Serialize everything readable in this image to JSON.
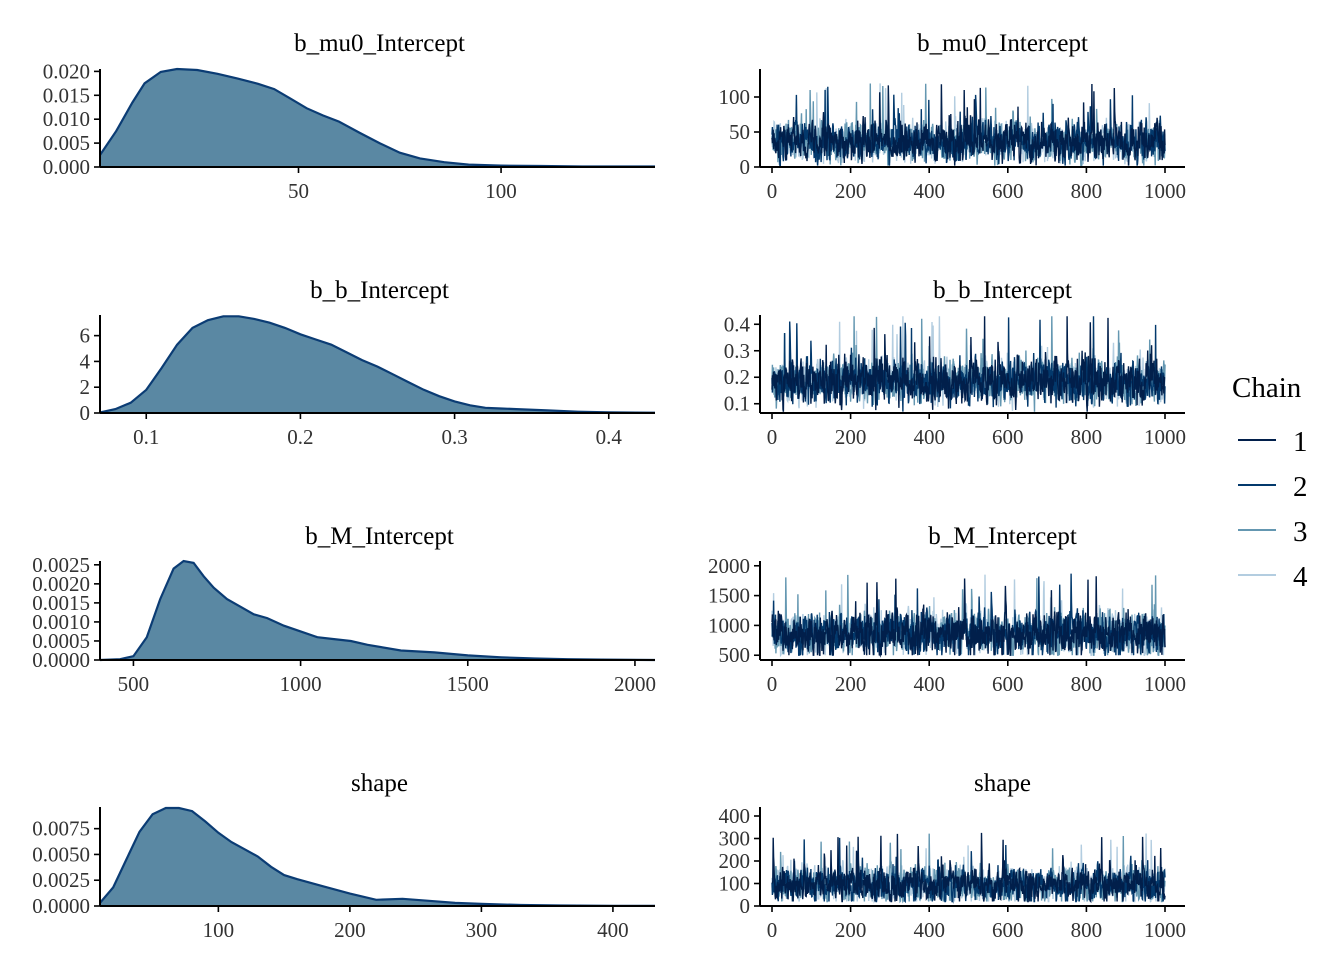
{
  "legend": {
    "title": "Chain",
    "items": [
      {
        "label": "1",
        "color": "#011f4b"
      },
      {
        "label": "2",
        "color": "#03396c"
      },
      {
        "label": "3",
        "color": "#6497b1"
      },
      {
        "label": "4",
        "color": "#b3cde0"
      }
    ]
  },
  "colors": {
    "density_fill": "#5a88a3",
    "density_line": "#0b3c74",
    "axis": "#000000"
  },
  "chart_data": [
    {
      "type": "area",
      "kind": "density",
      "title": "b_mu0_Intercept",
      "xlim": [
        1,
        138
      ],
      "ylim": [
        0,
        0.0205
      ],
      "xticks": [
        50,
        100
      ],
      "xtick_labels": [
        "50",
        "100"
      ],
      "yticks": [
        0,
        0.005,
        0.01,
        0.015,
        0.02
      ],
      "ytick_labels": [
        "0.000",
        "0.005",
        "0.010",
        "0.015",
        "0.020"
      ],
      "x": [
        1,
        5,
        9,
        12,
        16,
        20,
        25,
        30,
        35,
        40,
        44,
        48,
        52,
        56,
        60,
        65,
        70,
        75,
        80,
        86,
        92,
        100,
        110,
        120,
        130,
        138
      ],
      "y": [
        0.0025,
        0.0075,
        0.0135,
        0.0175,
        0.0199,
        0.0205,
        0.0203,
        0.0195,
        0.0185,
        0.0174,
        0.0163,
        0.0143,
        0.0123,
        0.0108,
        0.0095,
        0.0072,
        0.005,
        0.003,
        0.0018,
        0.001,
        0.0005,
        0.0003,
        0.0002,
        0.0001,
        0.0001,
        0.0001
      ]
    },
    {
      "type": "line",
      "kind": "trace",
      "title": "b_mu0_Intercept",
      "xlim": [
        0,
        1000
      ],
      "ylim": [
        0,
        140
      ],
      "xticks": [
        0,
        200,
        400,
        600,
        800,
        1000
      ],
      "xtick_labels": [
        "0",
        "200",
        "400",
        "600",
        "800",
        "1000"
      ],
      "yticks": [
        0,
        50,
        100
      ],
      "ytick_labels": [
        "0",
        "50",
        "100"
      ],
      "trace": {
        "iterations": 1000,
        "center": 36,
        "spread": 20,
        "min": 2,
        "max": 140,
        "seed": 11
      },
      "series": [
        {
          "name": "1"
        },
        {
          "name": "2"
        },
        {
          "name": "3"
        },
        {
          "name": "4"
        }
      ]
    },
    {
      "type": "area",
      "kind": "density",
      "title": "b_b_Intercept",
      "xlim": [
        0.07,
        0.43
      ],
      "ylim": [
        0,
        7.6
      ],
      "xticks": [
        0.1,
        0.2,
        0.3,
        0.4
      ],
      "xtick_labels": [
        "0.1",
        "0.2",
        "0.3",
        "0.4"
      ],
      "yticks": [
        0,
        2,
        4,
        6
      ],
      "ytick_labels": [
        "0",
        "2",
        "4",
        "6"
      ],
      "x": [
        0.07,
        0.08,
        0.09,
        0.1,
        0.11,
        0.12,
        0.13,
        0.14,
        0.15,
        0.16,
        0.17,
        0.18,
        0.19,
        0.2,
        0.21,
        0.22,
        0.23,
        0.24,
        0.25,
        0.26,
        0.27,
        0.28,
        0.29,
        0.3,
        0.31,
        0.32,
        0.33,
        0.34,
        0.36,
        0.38,
        0.4,
        0.43
      ],
      "y": [
        0.05,
        0.3,
        0.8,
        1.8,
        3.5,
        5.3,
        6.6,
        7.2,
        7.5,
        7.5,
        7.3,
        7.0,
        6.6,
        6.1,
        5.7,
        5.3,
        4.7,
        4.1,
        3.6,
        3.0,
        2.4,
        1.8,
        1.3,
        0.9,
        0.6,
        0.4,
        0.35,
        0.3,
        0.2,
        0.1,
        0.05,
        0.02
      ]
    },
    {
      "type": "line",
      "kind": "trace",
      "title": "b_b_Intercept",
      "xlim": [
        0,
        1000
      ],
      "ylim": [
        0.065,
        0.435
      ],
      "xticks": [
        0,
        200,
        400,
        600,
        800,
        1000
      ],
      "xtick_labels": [
        "0",
        "200",
        "400",
        "600",
        "800",
        "1000"
      ],
      "yticks": [
        0.1,
        0.2,
        0.3,
        0.4
      ],
      "ytick_labels": [
        "0.1",
        "0.2",
        "0.3",
        "0.4"
      ],
      "trace": {
        "iterations": 1000,
        "center": 0.185,
        "spread": 0.06,
        "min": 0.07,
        "max": 0.43,
        "seed": 23
      },
      "series": [
        {
          "name": "1"
        },
        {
          "name": "2"
        },
        {
          "name": "3"
        },
        {
          "name": "4"
        }
      ]
    },
    {
      "type": "area",
      "kind": "density",
      "title": "b_M_Intercept",
      "xlim": [
        400,
        2060
      ],
      "ylim": [
        0,
        0.0026
      ],
      "xticks": [
        500,
        1000,
        1500,
        2000
      ],
      "xtick_labels": [
        "500",
        "1000",
        "1500",
        "2000"
      ],
      "yticks": [
        0,
        0.0005,
        0.001,
        0.0015,
        0.002,
        0.0025
      ],
      "ytick_labels": [
        "0.0000",
        "0.0005",
        "0.0010",
        "0.0015",
        "0.0020",
        "0.0025"
      ],
      "x": [
        400,
        460,
        500,
        540,
        580,
        620,
        650,
        680,
        710,
        740,
        780,
        820,
        860,
        900,
        950,
        1000,
        1050,
        1100,
        1150,
        1200,
        1300,
        1400,
        1500,
        1600,
        1700,
        1800,
        1900,
        2060
      ],
      "y": [
        0.0,
        2e-05,
        0.0001,
        0.0006,
        0.0016,
        0.0024,
        0.0026,
        0.00255,
        0.0022,
        0.0019,
        0.0016,
        0.0014,
        0.0012,
        0.0011,
        0.0009,
        0.00075,
        0.0006,
        0.00055,
        0.0005,
        0.0004,
        0.00025,
        0.0002,
        0.00012,
        7e-05,
        4e-05,
        2e-05,
        1e-05,
        0.0
      ]
    },
    {
      "type": "line",
      "kind": "trace",
      "title": "b_M_Intercept",
      "xlim": [
        0,
        1000
      ],
      "ylim": [
        420,
        2080
      ],
      "xticks": [
        0,
        200,
        400,
        600,
        800,
        1000
      ],
      "xtick_labels": [
        "0",
        "200",
        "400",
        "600",
        "800",
        "1000"
      ],
      "yticks": [
        500,
        1000,
        1500,
        2000
      ],
      "ytick_labels": [
        "500",
        "1000",
        "1500",
        "2000"
      ],
      "trace": {
        "iterations": 1000,
        "center": 860,
        "spread": 260,
        "min": 500,
        "max": 2050,
        "seed": 37
      },
      "series": [
        {
          "name": "1"
        },
        {
          "name": "2"
        },
        {
          "name": "3"
        },
        {
          "name": "4"
        }
      ]
    },
    {
      "type": "area",
      "kind": "density",
      "title": "shape",
      "xlim": [
        10,
        432
      ],
      "ylim": [
        0,
        0.0096
      ],
      "xticks": [
        100,
        200,
        300,
        400
      ],
      "xtick_labels": [
        "100",
        "200",
        "300",
        "400"
      ],
      "yticks": [
        0,
        0.0025,
        0.005,
        0.0075
      ],
      "ytick_labels": [
        "0.0000",
        "0.0025",
        "0.0050",
        "0.0075"
      ],
      "x": [
        10,
        20,
        30,
        40,
        50,
        60,
        70,
        80,
        90,
        100,
        110,
        120,
        130,
        140,
        150,
        160,
        180,
        200,
        220,
        240,
        260,
        280,
        300,
        330,
        360,
        400,
        432
      ],
      "y": [
        0.0003,
        0.0018,
        0.0045,
        0.0072,
        0.0089,
        0.0095,
        0.0095,
        0.0092,
        0.0082,
        0.0071,
        0.0062,
        0.0055,
        0.0048,
        0.0038,
        0.003,
        0.0026,
        0.0019,
        0.0012,
        0.0006,
        0.0007,
        0.0005,
        0.0003,
        0.0002,
        0.0001,
        5e-05,
        2e-05,
        1e-05
      ]
    },
    {
      "type": "line",
      "kind": "trace",
      "title": "shape",
      "xlim": [
        0,
        1000
      ],
      "ylim": [
        0,
        440
      ],
      "xticks": [
        0,
        200,
        400,
        600,
        800,
        1000
      ],
      "xtick_labels": [
        "0",
        "200",
        "400",
        "600",
        "800",
        "1000"
      ],
      "yticks": [
        0,
        100,
        200,
        300,
        400
      ],
      "ytick_labels": [
        "0",
        "100",
        "200",
        "300",
        "400"
      ],
      "trace": {
        "iterations": 1000,
        "center": 95,
        "spread": 55,
        "min": 20,
        "max": 430,
        "seed": 53
      },
      "series": [
        {
          "name": "1"
        },
        {
          "name": "2"
        },
        {
          "name": "3"
        },
        {
          "name": "4"
        }
      ]
    }
  ]
}
